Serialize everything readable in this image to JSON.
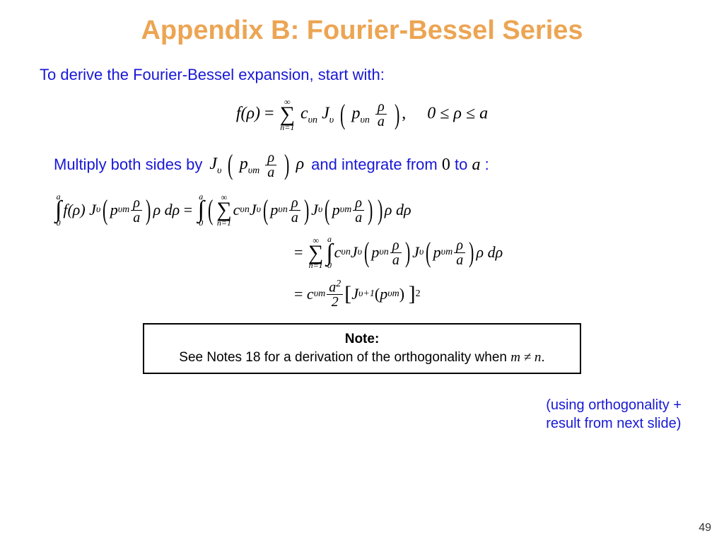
{
  "colors": {
    "title": "#eca554",
    "body_text": "#1818d6",
    "math": "#000000",
    "note_border": "#000000",
    "background": "#ffffff"
  },
  "typography": {
    "title_fontsize": 38,
    "body_fontsize": 22,
    "math_fontsize": 24,
    "note_fontsize": 19,
    "math_family": "Times New Roman"
  },
  "title": "Appendix B: Fourier-Bessel Series",
  "intro": "To derive the Fourier-Bessel expansion, start with:",
  "equation1": {
    "lhs": "f(ρ)",
    "sum_lower": "n=1",
    "sum_upper": "∞",
    "term_coeff_base": "c",
    "term_coeff_sub": "υn",
    "bessel_base": "J",
    "bessel_sub": "υ",
    "arg_base": "p",
    "arg_sub": "υn",
    "frac_num": "ρ",
    "frac_den": "a",
    "domain": "0 ≤ ρ ≤ a"
  },
  "row2": {
    "pre": "Multiply both sides by",
    "math": {
      "bessel_base": "J",
      "bessel_sub": "υ",
      "arg_base": "p",
      "arg_sub": "υm",
      "frac_num": "ρ",
      "frac_den": "a",
      "tail": "ρ"
    },
    "mid": "and integrate from",
    "from": "0",
    "to_word": "to",
    "to": "a",
    "colon": ":"
  },
  "derivation": {
    "line1": {
      "int_lo": "0",
      "int_hi": "a",
      "lhs": "f(ρ) J",
      "lhs_sub": "υ",
      "arg_p": "p",
      "arg_sub_m": "υm",
      "frac_num": "ρ",
      "frac_den": "a",
      "tail": "ρ dρ",
      "eq": "=",
      "sum_lo": "n=1",
      "sum_hi": "∞",
      "c_base": "c",
      "c_sub": "υn",
      "J": "J",
      "J_sub": "υ",
      "pn_base": "p",
      "pn_sub": "υn",
      "pm_base": "p",
      "pm_sub": "υm"
    },
    "line2": {
      "eq": "=",
      "sum_lo": "n=1",
      "sum_hi": "∞",
      "int_lo": "0",
      "int_hi": "a",
      "c_base": "c",
      "c_sub": "υn",
      "J": "J",
      "J_sub": "υ",
      "pn_base": "p",
      "pn_sub": "υn",
      "pm_base": "p",
      "pm_sub": "υm",
      "frac_num": "ρ",
      "frac_den": "a",
      "tail": "ρ dρ"
    },
    "line3": {
      "eq": "=",
      "c_base": "c",
      "c_sub": "υm",
      "frac_num": "a",
      "frac_num_sup": "2",
      "frac_den": "2",
      "lbr": "[",
      "J": "J",
      "J_sub": "υ+1",
      "arg_p": "p",
      "arg_sub": "υm",
      "rbr": "]",
      "sq": "2"
    }
  },
  "side_note_l1": "(using orthogonality +",
  "side_note_l2": "result from next slide)",
  "note_box_title": "Note:",
  "note_box_body_pre": "See Notes 18 for a derivation of the orthogonality when ",
  "note_box_math": "m ≠ n",
  "note_box_body_post": ".",
  "page_number": "49"
}
